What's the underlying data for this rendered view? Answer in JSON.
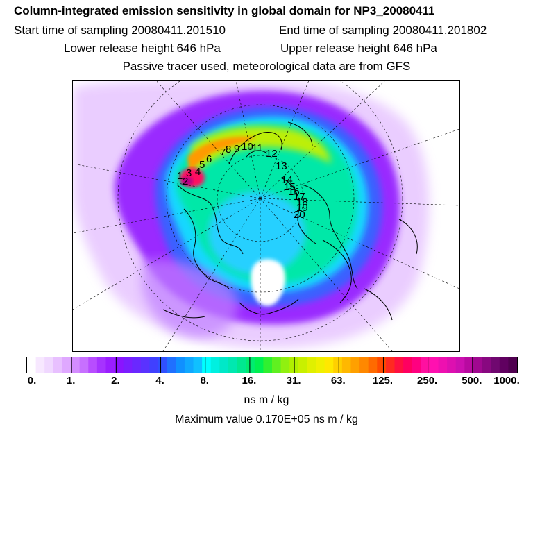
{
  "header": {
    "title": "Column-integrated emission sensitivity in global domain for NP3_20080411",
    "start_time": "Start time of sampling 20080411.201510",
    "end_time": "End time of sampling 20080411.201802",
    "lower_release": "Lower release height  646 hPa",
    "upper_release": "Upper release height  646 hPa",
    "tracer_note": "Passive tracer used, meteorological data are from GFS"
  },
  "map": {
    "projection": "north-polar-stereographic",
    "trajectory_labels": [
      "1",
      "2",
      "3",
      "4",
      "5",
      "6",
      "7",
      "8",
      "9",
      "10",
      "11",
      "12",
      "13",
      "14",
      "15",
      "16",
      "17",
      "18",
      "19",
      "20"
    ],
    "colors": {
      "coastline": "#000000",
      "graticule": "#000000",
      "max_sensitivity": "#ff1493",
      "high": "#ff6a00",
      "mid": "#00e6a8",
      "low": "#00d8ff",
      "very_low": "#a020f0"
    }
  },
  "colorbar": {
    "tick_labels": [
      "0.",
      "1.",
      "2.",
      "4.",
      "8.",
      "16.",
      "31.",
      "63.",
      "125.",
      "250.",
      "500.",
      "1000."
    ],
    "unit": "ns m / kg",
    "colors": [
      "#ffffff",
      "#f7e8ff",
      "#f0d8ff",
      "#e8c0ff",
      "#dfa8ff",
      "#d48cff",
      "#c770ff",
      "#b84dff",
      "#a633ff",
      "#9a1eff",
      "#8a14ff",
      "#7a1eff",
      "#6a28ff",
      "#5a32ff",
      "#4040ff",
      "#3050ff",
      "#2070ff",
      "#1090ff",
      "#10a8ff",
      "#10c0ff",
      "#00ffff",
      "#00f0e0",
      "#00e8c8",
      "#00e8b0",
      "#00e890",
      "#00ec70",
      "#00f050",
      "#30f030",
      "#60f020",
      "#90f010",
      "#b0f000",
      "#c8f000",
      "#e0f000",
      "#f0f000",
      "#ffe800",
      "#ffd000",
      "#ffb800",
      "#ffa000",
      "#ff8800",
      "#ff6a00",
      "#ff4a00",
      "#ff2a20",
      "#ff1040",
      "#ff0060",
      "#ff0080",
      "#ff10a0",
      "#ff10b0",
      "#ee10b0",
      "#dd10b0",
      "#cc10b0",
      "#b80aa0",
      "#a00890",
      "#880880",
      "#700870",
      "#600060",
      "#500050"
    ]
  },
  "maximum": "Maximum value  0.170E+05 ns m / kg"
}
